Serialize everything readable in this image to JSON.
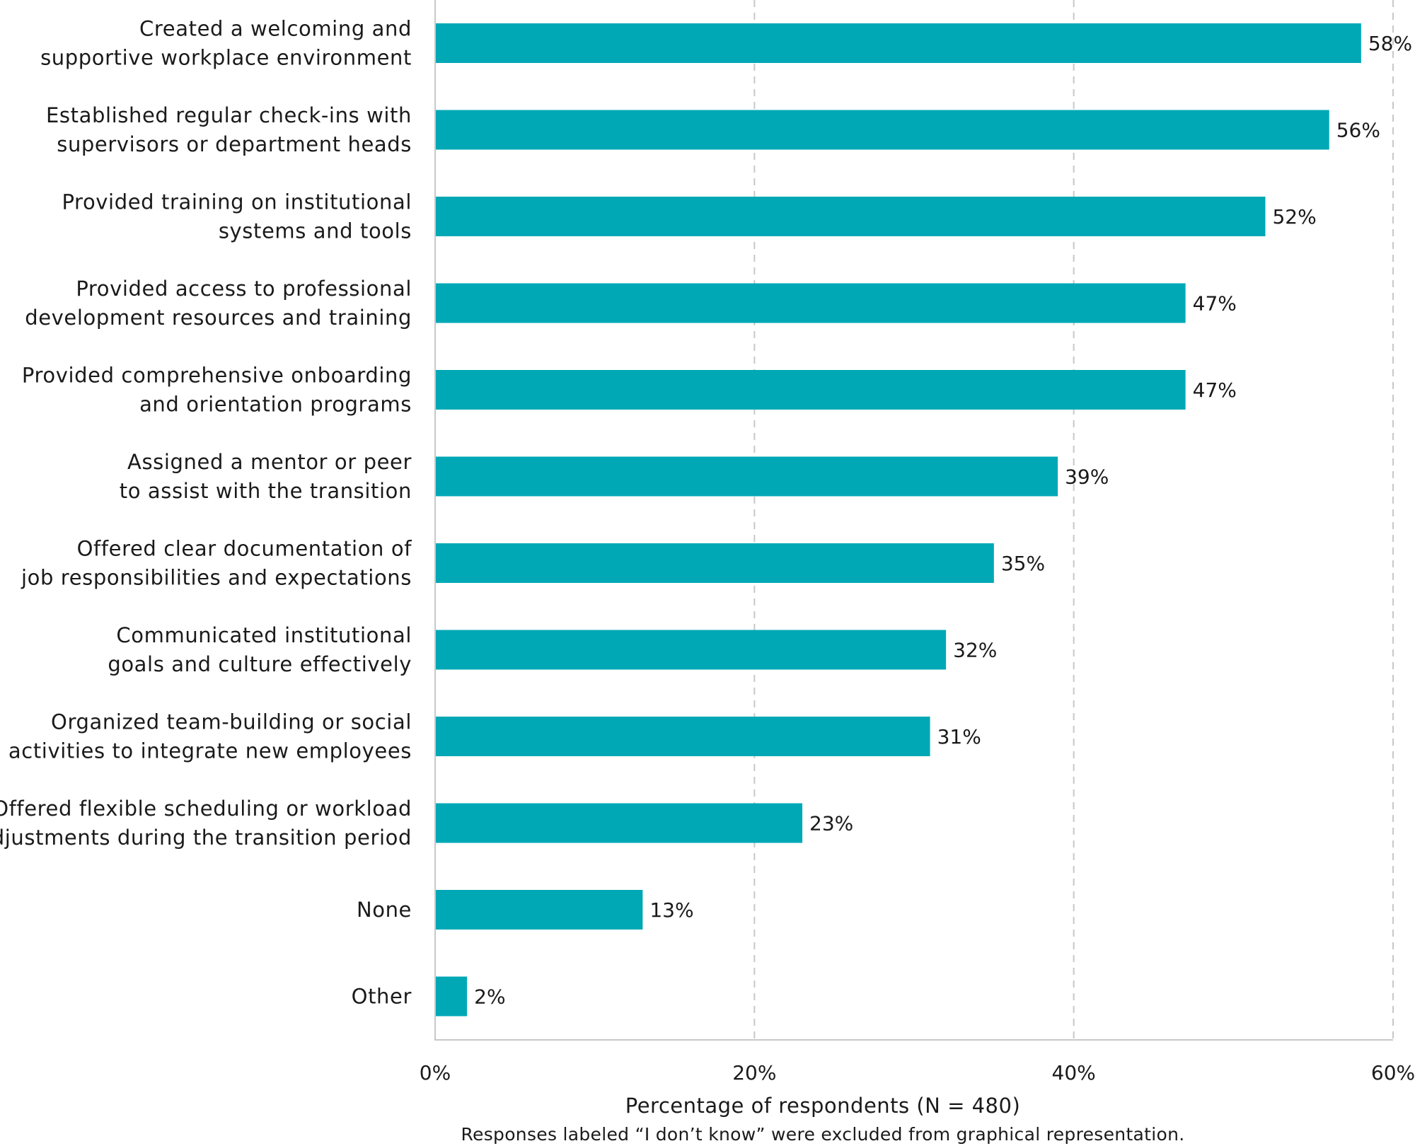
{
  "chart_data": {
    "type": "bar",
    "orientation": "horizontal",
    "categories": [
      [
        "Created a welcoming and",
        "supportive workplace environment"
      ],
      [
        "Established regular check-ins with",
        "supervisors or department heads"
      ],
      [
        "Provided training on institutional",
        "systems and tools"
      ],
      [
        "Provided access to professional",
        "development resources and training"
      ],
      [
        "Provided comprehensive onboarding",
        "and orientation programs"
      ],
      [
        "Assigned a mentor or peer",
        "to assist with the transition"
      ],
      [
        "Offered clear documentation of",
        "job responsibilities and expectations"
      ],
      [
        "Communicated institutional",
        "goals and culture effectively"
      ],
      [
        "Organized team-building or social",
        "activities to integrate new employees"
      ],
      [
        "Offered flexible scheduling or workload",
        "adjustments during the transition period"
      ],
      [
        "None"
      ],
      [
        "Other"
      ]
    ],
    "values": [
      58,
      56,
      52,
      47,
      47,
      39,
      35,
      32,
      31,
      23,
      13,
      2
    ],
    "value_labels": [
      "58%",
      "56%",
      "52%",
      "47%",
      "47%",
      "39%",
      "35%",
      "32%",
      "31%",
      "23%",
      "13%",
      "2%"
    ],
    "xticks": [
      0,
      20,
      40,
      60
    ],
    "xtick_labels": [
      "0%",
      "20%",
      "40%",
      "60%"
    ],
    "xlim": [
      0,
      60
    ],
    "xlabel": "Percentage of respondents (N = 480)",
    "note": "Responses labeled “I don’t know” were excluded from graphical representation.",
    "bar_color": "#00a8b5",
    "grid": true,
    "legend": "none"
  }
}
